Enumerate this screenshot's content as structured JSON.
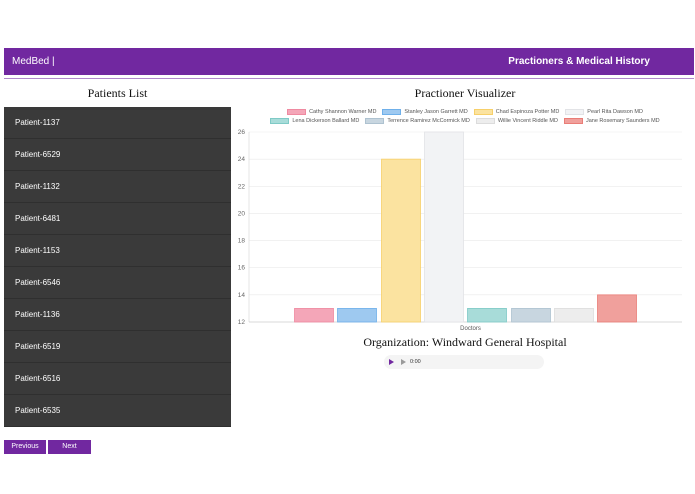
{
  "header": {
    "brand": "MedBed |",
    "title": "Practioners & Medical History",
    "accent_color": "#7128a0"
  },
  "patients": {
    "heading": "Patients List",
    "items": [
      "Patient-1137",
      "Patient-6529",
      "Patient-1132",
      "Patient-6481",
      "Patient-1153",
      "Patient-6546",
      "Patient-1136",
      "Patient-6519",
      "Patient-6516",
      "Patient-6535"
    ],
    "previous_label": "Previous",
    "next_label": "Next"
  },
  "visualizer": {
    "heading": "Practioner Visualizer",
    "organization": "Organization: Windward General Hospital"
  },
  "chart_data": {
    "type": "bar",
    "xlabel": "Doctors",
    "ylim": [
      12,
      26
    ],
    "yticks": [
      12,
      14,
      16,
      18,
      20,
      22,
      24,
      26
    ],
    "grid": true,
    "legend_position": "top",
    "series": [
      {
        "name": "Cathy Shannon Warner MD",
        "value": 13,
        "fill": "#f4a6b8",
        "stroke": "#ef8aa1"
      },
      {
        "name": "Stanley Jason Garrett MD",
        "value": 13,
        "fill": "#9ec9f0",
        "stroke": "#6fb0ea"
      },
      {
        "name": "Chad Espinoza Potter MD",
        "value": 24,
        "fill": "#fbe3a0",
        "stroke": "#f7d06a"
      },
      {
        "name": "Pearl Rita Dawson MD",
        "value": 26,
        "fill": "#f2f3f5",
        "stroke": "#e2e3e6"
      },
      {
        "name": "Lena Dickerson Ballard MD",
        "value": 13,
        "fill": "#a8dcd9",
        "stroke": "#7fcac6"
      },
      {
        "name": "Terrence Ramirez McCormick MD",
        "value": 13,
        "fill": "#c8d6e0",
        "stroke": "#aec2d0"
      },
      {
        "name": "Willie Vincent Riddle MD",
        "value": 13,
        "fill": "#ededed",
        "stroke": "#dcdcdc"
      },
      {
        "name": "Jane Rosemary Saunders MD",
        "value": 14,
        "fill": "#f0a09c",
        "stroke": "#e97d77"
      }
    ]
  },
  "audio": {
    "time": "0:00"
  }
}
